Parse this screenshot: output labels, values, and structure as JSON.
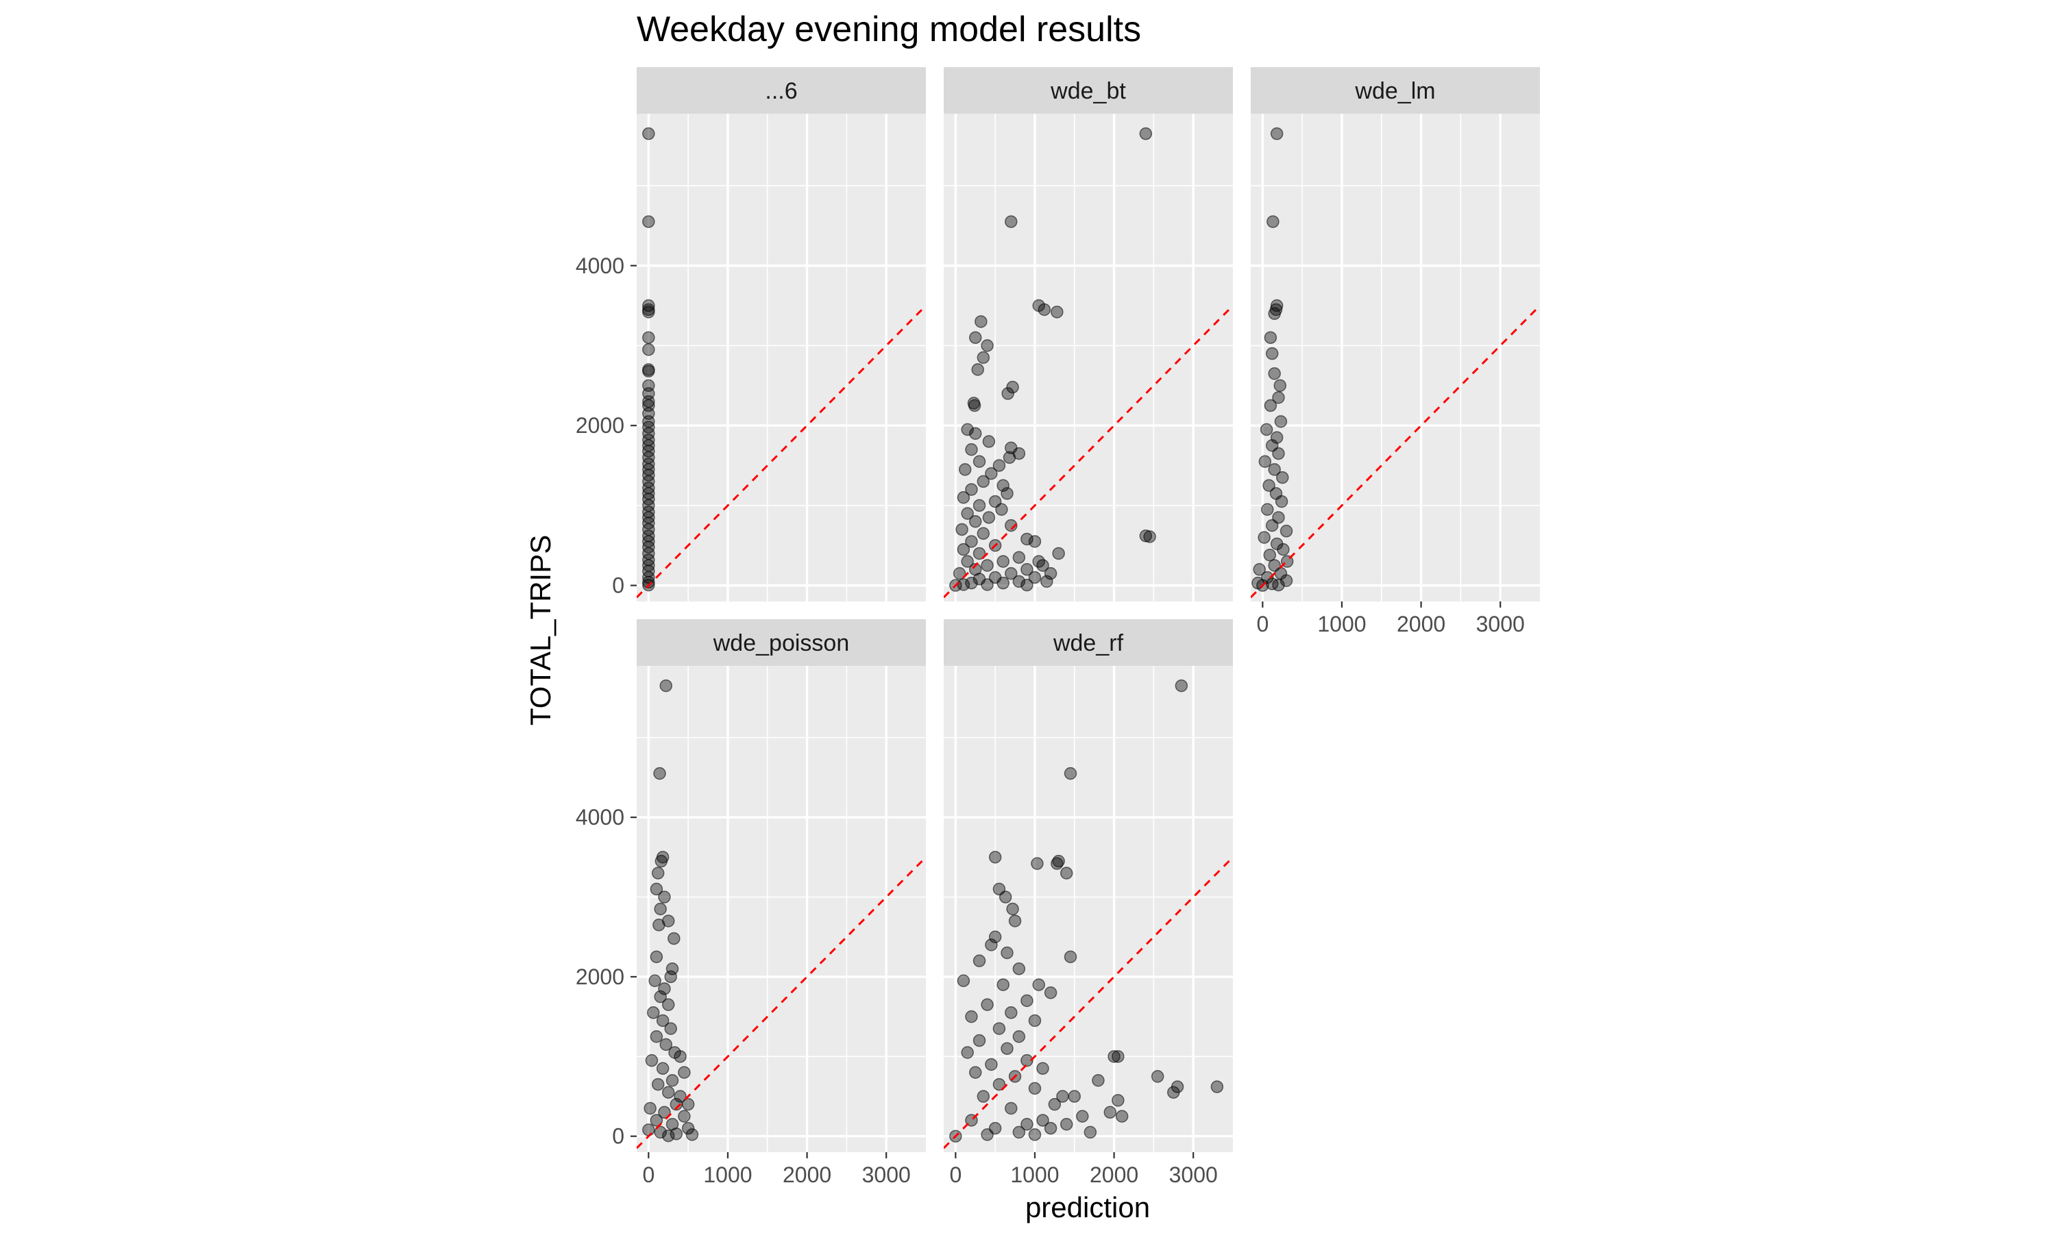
{
  "chart_data": {
    "type": "scatter",
    "title": "Weekday evening model results",
    "xlabel": "prediction",
    "ylabel": "TOTAL_TRIPS",
    "xlim": [
      -150,
      3500
    ],
    "ylim": [
      -200,
      5900
    ],
    "x_ticks": [
      0,
      1000,
      2000,
      3000
    ],
    "x_tick_labels": [
      "0",
      "1000",
      "2000",
      "3000"
    ],
    "y_ticks": [
      0,
      2000,
      4000
    ],
    "y_tick_labels": [
      "0",
      "2000",
      "4000"
    ],
    "grid": true,
    "reference_line": {
      "slope": 1,
      "intercept": 0,
      "style": "dashed",
      "color": "#ff0000"
    },
    "colors": {
      "panel_bg": "#ebebeb",
      "grid": "#ffffff",
      "strip_bg": "#d9d9d9",
      "point": "#000000",
      "reference": "#ff0000"
    },
    "facets": [
      {
        "label": "...6",
        "points": [
          {
            "x": 0,
            "y": 5650
          },
          {
            "x": 0,
            "y": 4550
          },
          {
            "x": 0,
            "y": 3500
          },
          {
            "x": 0,
            "y": 3450
          },
          {
            "x": 0,
            "y": 3420
          },
          {
            "x": 0,
            "y": 3100
          },
          {
            "x": 0,
            "y": 2950
          },
          {
            "x": 0,
            "y": 2700
          },
          {
            "x": 0,
            "y": 2680
          },
          {
            "x": 0,
            "y": 2500
          },
          {
            "x": 0,
            "y": 2400
          },
          {
            "x": 0,
            "y": 2300
          },
          {
            "x": 0,
            "y": 2250
          },
          {
            "x": 0,
            "y": 2150
          },
          {
            "x": 0,
            "y": 2050
          },
          {
            "x": 0,
            "y": 1980
          },
          {
            "x": 0,
            "y": 1900
          },
          {
            "x": 0,
            "y": 1820
          },
          {
            "x": 0,
            "y": 1750
          },
          {
            "x": 0,
            "y": 1680
          },
          {
            "x": 0,
            "y": 1600
          },
          {
            "x": 0,
            "y": 1520
          },
          {
            "x": 0,
            "y": 1450
          },
          {
            "x": 0,
            "y": 1380
          },
          {
            "x": 0,
            "y": 1300
          },
          {
            "x": 0,
            "y": 1220
          },
          {
            "x": 0,
            "y": 1150
          },
          {
            "x": 0,
            "y": 1080
          },
          {
            "x": 0,
            "y": 1000
          },
          {
            "x": 0,
            "y": 920
          },
          {
            "x": 0,
            "y": 850
          },
          {
            "x": 0,
            "y": 780
          },
          {
            "x": 0,
            "y": 700
          },
          {
            "x": 0,
            "y": 620
          },
          {
            "x": 0,
            "y": 550
          },
          {
            "x": 0,
            "y": 480
          },
          {
            "x": 0,
            "y": 400
          },
          {
            "x": 0,
            "y": 320
          },
          {
            "x": 0,
            "y": 250
          },
          {
            "x": 0,
            "y": 180
          },
          {
            "x": 0,
            "y": 100
          },
          {
            "x": 0,
            "y": 40
          },
          {
            "x": 0,
            "y": 5
          }
        ]
      },
      {
        "label": "wde_bt",
        "points": [
          {
            "x": 2400,
            "y": 5650
          },
          {
            "x": 700,
            "y": 4550
          },
          {
            "x": 1050,
            "y": 3500
          },
          {
            "x": 1120,
            "y": 3450
          },
          {
            "x": 1280,
            "y": 3420
          },
          {
            "x": 320,
            "y": 3300
          },
          {
            "x": 250,
            "y": 3100
          },
          {
            "x": 400,
            "y": 3000
          },
          {
            "x": 350,
            "y": 2850
          },
          {
            "x": 280,
            "y": 2700
          },
          {
            "x": 720,
            "y": 2480
          },
          {
            "x": 660,
            "y": 2400
          },
          {
            "x": 230,
            "y": 2280
          },
          {
            "x": 240,
            "y": 2250
          },
          {
            "x": 150,
            "y": 1950
          },
          {
            "x": 250,
            "y": 1900
          },
          {
            "x": 420,
            "y": 1800
          },
          {
            "x": 200,
            "y": 1700
          },
          {
            "x": 700,
            "y": 1720
          },
          {
            "x": 800,
            "y": 1650
          },
          {
            "x": 680,
            "y": 1600
          },
          {
            "x": 300,
            "y": 1550
          },
          {
            "x": 550,
            "y": 1500
          },
          {
            "x": 120,
            "y": 1450
          },
          {
            "x": 450,
            "y": 1400
          },
          {
            "x": 350,
            "y": 1300
          },
          {
            "x": 600,
            "y": 1250
          },
          {
            "x": 200,
            "y": 1200
          },
          {
            "x": 650,
            "y": 1150
          },
          {
            "x": 100,
            "y": 1100
          },
          {
            "x": 500,
            "y": 1050
          },
          {
            "x": 300,
            "y": 1000
          },
          {
            "x": 580,
            "y": 950
          },
          {
            "x": 150,
            "y": 900
          },
          {
            "x": 420,
            "y": 850
          },
          {
            "x": 250,
            "y": 800
          },
          {
            "x": 700,
            "y": 750
          },
          {
            "x": 80,
            "y": 700
          },
          {
            "x": 350,
            "y": 650
          },
          {
            "x": 900,
            "y": 580
          },
          {
            "x": 200,
            "y": 550
          },
          {
            "x": 1000,
            "y": 550
          },
          {
            "x": 2400,
            "y": 620
          },
          {
            "x": 2450,
            "y": 610
          },
          {
            "x": 500,
            "y": 500
          },
          {
            "x": 100,
            "y": 450
          },
          {
            "x": 1300,
            "y": 400
          },
          {
            "x": 300,
            "y": 400
          },
          {
            "x": 800,
            "y": 350
          },
          {
            "x": 1050,
            "y": 300
          },
          {
            "x": 600,
            "y": 300
          },
          {
            "x": 150,
            "y": 300
          },
          {
            "x": 1100,
            "y": 250
          },
          {
            "x": 400,
            "y": 250
          },
          {
            "x": 900,
            "y": 200
          },
          {
            "x": 250,
            "y": 200
          },
          {
            "x": 1200,
            "y": 150
          },
          {
            "x": 700,
            "y": 150
          },
          {
            "x": 50,
            "y": 150
          },
          {
            "x": 500,
            "y": 100
          },
          {
            "x": 1000,
            "y": 100
          },
          {
            "x": 300,
            "y": 80
          },
          {
            "x": 1150,
            "y": 50
          },
          {
            "x": 800,
            "y": 50
          },
          {
            "x": 600,
            "y": 30
          },
          {
            "x": 200,
            "y": 30
          },
          {
            "x": 400,
            "y": 10
          },
          {
            "x": 100,
            "y": 10
          },
          {
            "x": 0,
            "y": 0
          },
          {
            "x": 900,
            "y": 5
          }
        ]
      },
      {
        "label": "wde_lm",
        "points": [
          {
            "x": 180,
            "y": 5650
          },
          {
            "x": 130,
            "y": 4550
          },
          {
            "x": 180,
            "y": 3500
          },
          {
            "x": 170,
            "y": 3450
          },
          {
            "x": 150,
            "y": 3400
          },
          {
            "x": 100,
            "y": 3100
          },
          {
            "x": 120,
            "y": 2900
          },
          {
            "x": 150,
            "y": 2650
          },
          {
            "x": 220,
            "y": 2500
          },
          {
            "x": 200,
            "y": 2350
          },
          {
            "x": 100,
            "y": 2250
          },
          {
            "x": 230,
            "y": 2050
          },
          {
            "x": 50,
            "y": 1950
          },
          {
            "x": 180,
            "y": 1850
          },
          {
            "x": 120,
            "y": 1750
          },
          {
            "x": 200,
            "y": 1650
          },
          {
            "x": 30,
            "y": 1550
          },
          {
            "x": 150,
            "y": 1450
          },
          {
            "x": 250,
            "y": 1350
          },
          {
            "x": 80,
            "y": 1250
          },
          {
            "x": 170,
            "y": 1150
          },
          {
            "x": 240,
            "y": 1050
          },
          {
            "x": 60,
            "y": 950
          },
          {
            "x": 200,
            "y": 850
          },
          {
            "x": 120,
            "y": 750
          },
          {
            "x": 300,
            "y": 680
          },
          {
            "x": 20,
            "y": 600
          },
          {
            "x": 180,
            "y": 520
          },
          {
            "x": 260,
            "y": 450
          },
          {
            "x": 90,
            "y": 380
          },
          {
            "x": 310,
            "y": 300
          },
          {
            "x": 150,
            "y": 250
          },
          {
            "x": -40,
            "y": 200
          },
          {
            "x": 230,
            "y": 150
          },
          {
            "x": 60,
            "y": 100
          },
          {
            "x": 300,
            "y": 60
          },
          {
            "x": -60,
            "y": 30
          },
          {
            "x": 120,
            "y": 20
          },
          {
            "x": 200,
            "y": 5
          },
          {
            "x": 0,
            "y": 0
          }
        ]
      },
      {
        "label": "wde_poisson",
        "points": [
          {
            "x": 220,
            "y": 5650
          },
          {
            "x": 140,
            "y": 4550
          },
          {
            "x": 180,
            "y": 3500
          },
          {
            "x": 160,
            "y": 3450
          },
          {
            "x": 120,
            "y": 3300
          },
          {
            "x": 100,
            "y": 3100
          },
          {
            "x": 200,
            "y": 3000
          },
          {
            "x": 150,
            "y": 2850
          },
          {
            "x": 250,
            "y": 2700
          },
          {
            "x": 130,
            "y": 2650
          },
          {
            "x": 320,
            "y": 2480
          },
          {
            "x": 100,
            "y": 2250
          },
          {
            "x": 300,
            "y": 2100
          },
          {
            "x": 280,
            "y": 2000
          },
          {
            "x": 80,
            "y": 1950
          },
          {
            "x": 200,
            "y": 1850
          },
          {
            "x": 150,
            "y": 1750
          },
          {
            "x": 250,
            "y": 1650
          },
          {
            "x": 60,
            "y": 1550
          },
          {
            "x": 180,
            "y": 1450
          },
          {
            "x": 280,
            "y": 1350
          },
          {
            "x": 100,
            "y": 1250
          },
          {
            "x": 220,
            "y": 1150
          },
          {
            "x": 330,
            "y": 1050
          },
          {
            "x": 400,
            "y": 1000
          },
          {
            "x": 40,
            "y": 950
          },
          {
            "x": 180,
            "y": 850
          },
          {
            "x": 450,
            "y": 800
          },
          {
            "x": 300,
            "y": 700
          },
          {
            "x": 120,
            "y": 650
          },
          {
            "x": 250,
            "y": 550
          },
          {
            "x": 400,
            "y": 500
          },
          {
            "x": 500,
            "y": 400
          },
          {
            "x": 350,
            "y": 400
          },
          {
            "x": 20,
            "y": 350
          },
          {
            "x": 200,
            "y": 300
          },
          {
            "x": 450,
            "y": 250
          },
          {
            "x": 100,
            "y": 200
          },
          {
            "x": 300,
            "y": 150
          },
          {
            "x": 500,
            "y": 100
          },
          {
            "x": 0,
            "y": 80
          },
          {
            "x": 150,
            "y": 50
          },
          {
            "x": 350,
            "y": 30
          },
          {
            "x": 550,
            "y": 20
          },
          {
            "x": 250,
            "y": 5
          }
        ]
      },
      {
        "label": "wde_rf",
        "points": [
          {
            "x": 2850,
            "y": 5650
          },
          {
            "x": 1450,
            "y": 4550
          },
          {
            "x": 500,
            "y": 3500
          },
          {
            "x": 1300,
            "y": 3450
          },
          {
            "x": 1280,
            "y": 3420
          },
          {
            "x": 1400,
            "y": 3300
          },
          {
            "x": 1030,
            "y": 3420
          },
          {
            "x": 550,
            "y": 3100
          },
          {
            "x": 630,
            "y": 3000
          },
          {
            "x": 720,
            "y": 2850
          },
          {
            "x": 750,
            "y": 2700
          },
          {
            "x": 500,
            "y": 2500
          },
          {
            "x": 450,
            "y": 2400
          },
          {
            "x": 1450,
            "y": 2250
          },
          {
            "x": 650,
            "y": 2300
          },
          {
            "x": 300,
            "y": 2200
          },
          {
            "x": 800,
            "y": 2100
          },
          {
            "x": 100,
            "y": 1950
          },
          {
            "x": 600,
            "y": 1900
          },
          {
            "x": 1050,
            "y": 1900
          },
          {
            "x": 1200,
            "y": 1800
          },
          {
            "x": 900,
            "y": 1700
          },
          {
            "x": 400,
            "y": 1650
          },
          {
            "x": 700,
            "y": 1550
          },
          {
            "x": 200,
            "y": 1500
          },
          {
            "x": 1000,
            "y": 1450
          },
          {
            "x": 550,
            "y": 1350
          },
          {
            "x": 800,
            "y": 1250
          },
          {
            "x": 300,
            "y": 1200
          },
          {
            "x": 650,
            "y": 1100
          },
          {
            "x": 150,
            "y": 1050
          },
          {
            "x": 2000,
            "y": 1000
          },
          {
            "x": 2050,
            "y": 1000
          },
          {
            "x": 900,
            "y": 950
          },
          {
            "x": 450,
            "y": 900
          },
          {
            "x": 1100,
            "y": 850
          },
          {
            "x": 250,
            "y": 800
          },
          {
            "x": 750,
            "y": 750
          },
          {
            "x": 2550,
            "y": 750
          },
          {
            "x": 1800,
            "y": 700
          },
          {
            "x": 550,
            "y": 650
          },
          {
            "x": 3300,
            "y": 620
          },
          {
            "x": 2800,
            "y": 620
          },
          {
            "x": 2750,
            "y": 550
          },
          {
            "x": 1000,
            "y": 600
          },
          {
            "x": 1350,
            "y": 500
          },
          {
            "x": 1500,
            "y": 500
          },
          {
            "x": 2050,
            "y": 450
          },
          {
            "x": 350,
            "y": 500
          },
          {
            "x": 1250,
            "y": 400
          },
          {
            "x": 1950,
            "y": 300
          },
          {
            "x": 2100,
            "y": 250
          },
          {
            "x": 700,
            "y": 350
          },
          {
            "x": 1600,
            "y": 250
          },
          {
            "x": 1100,
            "y": 200
          },
          {
            "x": 900,
            "y": 150
          },
          {
            "x": 1400,
            "y": 150
          },
          {
            "x": 200,
            "y": 200
          },
          {
            "x": 500,
            "y": 100
          },
          {
            "x": 1200,
            "y": 100
          },
          {
            "x": 800,
            "y": 50
          },
          {
            "x": 1700,
            "y": 50
          },
          {
            "x": 0,
            "y": 0
          },
          {
            "x": 400,
            "y": 20
          },
          {
            "x": 1000,
            "y": 20
          }
        ]
      }
    ]
  }
}
